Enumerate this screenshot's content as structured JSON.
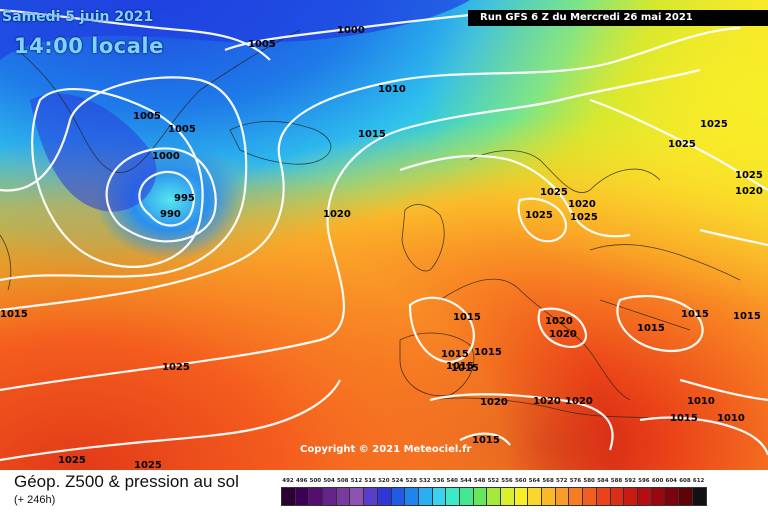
{
  "header": {
    "date": "Samedi 5 juin 2021",
    "time": "14:00 locale",
    "run": "Run GFS 6 Z du Mercredi 26 mai 2021"
  },
  "copyright": "Copyright © 2021 Meteociel.fr",
  "footer": {
    "title": "Géop. Z500 & pression au sol",
    "subtitle": "(+ 246h)"
  },
  "legend": [
    {
      "label": "492",
      "color": "#2b0033"
    },
    {
      "label": "496",
      "color": "#3d0055"
    },
    {
      "label": "500",
      "color": "#520f70"
    },
    {
      "label": "504",
      "color": "#66248a"
    },
    {
      "label": "508",
      "color": "#7a3ba0"
    },
    {
      "label": "512",
      "color": "#8c52b4"
    },
    {
      "label": "516",
      "color": "#5a3dc8"
    },
    {
      "label": "520",
      "color": "#2f37d6"
    },
    {
      "label": "524",
      "color": "#1f5be6"
    },
    {
      "label": "528",
      "color": "#1f85ee"
    },
    {
      "label": "532",
      "color": "#2ab0f2"
    },
    {
      "label": "536",
      "color": "#3cd2ee"
    },
    {
      "label": "540",
      "color": "#3fe8c6"
    },
    {
      "label": "544",
      "color": "#45e890"
    },
    {
      "label": "548",
      "color": "#66e65a"
    },
    {
      "label": "552",
      "color": "#a4ea3a"
    },
    {
      "label": "556",
      "color": "#d9ef2e"
    },
    {
      "label": "560",
      "color": "#f7ef28"
    },
    {
      "label": "564",
      "color": "#fbd62a"
    },
    {
      "label": "568",
      "color": "#fbb92a"
    },
    {
      "label": "572",
      "color": "#fa9a28"
    },
    {
      "label": "576",
      "color": "#f77c22"
    },
    {
      "label": "580",
      "color": "#f25e1e"
    },
    {
      "label": "584",
      "color": "#ea4318"
    },
    {
      "label": "588",
      "color": "#dd2d16"
    },
    {
      "label": "592",
      "color": "#c91a14"
    },
    {
      "label": "596",
      "color": "#b30e12"
    },
    {
      "label": "600",
      "color": "#990710"
    },
    {
      "label": "604",
      "color": "#7c030c"
    },
    {
      "label": "608",
      "color": "#5e0208"
    },
    {
      "label": "612",
      "color": "#111111"
    }
  ],
  "isobars": [
    {
      "text": "1000"
    },
    {
      "text": "1005"
    },
    {
      "text": "1005"
    },
    {
      "text": "1005"
    },
    {
      "text": "1000"
    },
    {
      "text": "995"
    },
    {
      "text": "990"
    },
    {
      "text": "1010"
    },
    {
      "text": "1015"
    },
    {
      "text": "1020"
    },
    {
      "text": "1025"
    },
    {
      "text": "1025"
    },
    {
      "text": "1025"
    },
    {
      "text": "1025"
    },
    {
      "text": "1025"
    },
    {
      "text": "1025"
    },
    {
      "text": "1020"
    },
    {
      "text": "1020"
    },
    {
      "text": "1025"
    },
    {
      "text": "1015"
    },
    {
      "text": "1015"
    },
    {
      "text": "1015"
    },
    {
      "text": "1015"
    },
    {
      "text": "1015"
    },
    {
      "text": "1020"
    },
    {
      "text": "1020"
    },
    {
      "text": "1015"
    },
    {
      "text": "1015"
    },
    {
      "text": "1015"
    },
    {
      "text": "1020"
    },
    {
      "text": "1020"
    },
    {
      "text": "1020"
    },
    {
      "text": "1010"
    },
    {
      "text": "1015"
    },
    {
      "text": "1010"
    },
    {
      "text": "1015"
    },
    {
      "text": "1025"
    },
    {
      "text": "1025"
    },
    {
      "text": "1015"
    }
  ]
}
